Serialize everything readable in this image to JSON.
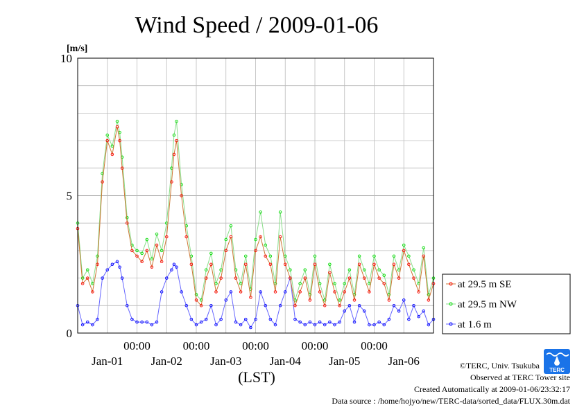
{
  "chart_data": {
    "type": "line",
    "title": "Wind Speed / 2009-01-06",
    "ylabel": "[m/s]",
    "xlabel": "(LST)",
    "ylim": [
      0,
      10
    ],
    "yticks": [
      "0",
      "5",
      "10"
    ],
    "x_range_hours": [
      0,
      144
    ],
    "time_ticks": [
      {
        "hour": 24,
        "label": "00:00"
      },
      {
        "hour": 48,
        "label": "00:00"
      },
      {
        "hour": 72,
        "label": "00:00"
      },
      {
        "hour": 96,
        "label": "00:00"
      },
      {
        "hour": 120,
        "label": "00:00"
      }
    ],
    "date_labels": [
      {
        "hour": 12,
        "label": "Jan-01"
      },
      {
        "hour": 36,
        "label": "Jan-02"
      },
      {
        "hour": 60,
        "label": "Jan-03"
      },
      {
        "hour": 84,
        "label": "Jan-04"
      },
      {
        "hour": 108,
        "label": "Jan-05"
      },
      {
        "hour": 132,
        "label": "Jan-06"
      }
    ],
    "grid": true,
    "legend_position": "right",
    "series": [
      {
        "name": "at 29.5 m SE",
        "color": "#ff0000",
        "line_color": "#cc7733",
        "x": [
          0,
          2,
          4,
          6,
          8,
          10,
          12,
          14,
          16,
          17,
          18,
          20,
          22,
          24,
          26,
          28,
          30,
          32,
          34,
          36,
          38,
          39,
          40,
          42,
          44,
          46,
          48,
          50,
          52,
          54,
          56,
          58,
          60,
          62,
          64,
          66,
          68,
          70,
          72,
          74,
          76,
          78,
          80,
          82,
          84,
          86,
          88,
          90,
          92,
          94,
          96,
          98,
          100,
          102,
          104,
          106,
          108,
          110,
          112,
          114,
          116,
          118,
          120,
          122,
          124,
          126,
          128,
          130,
          132,
          134,
          136,
          138,
          140,
          142,
          144
        ],
        "y": [
          3.8,
          1.8,
          2.0,
          1.5,
          2.5,
          5.5,
          7.0,
          6.5,
          7.5,
          7.0,
          6.0,
          4.0,
          3.0,
          2.8,
          2.6,
          3.0,
          2.4,
          3.2,
          2.6,
          3.5,
          5.5,
          6.5,
          7.0,
          5.0,
          3.5,
          2.5,
          1.2,
          1.0,
          2.0,
          2.5,
          1.5,
          2.0,
          3.0,
          3.5,
          2.0,
          1.5,
          2.5,
          1.3,
          3.0,
          3.5,
          2.8,
          2.5,
          1.5,
          3.5,
          2.5,
          2.0,
          1.0,
          1.5,
          2.0,
          1.2,
          2.5,
          1.5,
          1.0,
          2.2,
          1.5,
          1.0,
          1.5,
          2.0,
          1.2,
          2.5,
          2.0,
          1.5,
          2.5,
          2.0,
          1.8,
          1.2,
          2.5,
          2.0,
          3.0,
          2.5,
          2.0,
          1.5,
          2.8,
          1.2,
          1.8
        ]
      },
      {
        "name": "at 29.5 m NW",
        "color": "#00dd00",
        "line_color": "#88dd88",
        "x": [
          0,
          2,
          4,
          6,
          8,
          10,
          12,
          14,
          16,
          17,
          18,
          20,
          22,
          24,
          26,
          28,
          30,
          32,
          34,
          36,
          38,
          39,
          40,
          42,
          44,
          46,
          48,
          50,
          52,
          54,
          56,
          58,
          60,
          62,
          64,
          66,
          68,
          70,
          72,
          74,
          76,
          78,
          80,
          82,
          84,
          86,
          88,
          90,
          92,
          94,
          96,
          98,
          100,
          102,
          104,
          106,
          108,
          110,
          112,
          114,
          116,
          118,
          120,
          122,
          124,
          126,
          128,
          130,
          132,
          134,
          136,
          138,
          140,
          142,
          144
        ],
        "y": [
          4.0,
          2.0,
          2.3,
          1.8,
          2.8,
          5.8,
          7.2,
          6.8,
          7.7,
          7.3,
          6.4,
          4.2,
          3.2,
          3.0,
          2.9,
          3.4,
          2.7,
          3.6,
          3.0,
          4.0,
          6.0,
          7.2,
          7.7,
          5.4,
          3.9,
          2.8,
          1.4,
          1.2,
          2.3,
          2.9,
          1.8,
          2.3,
          3.4,
          3.9,
          2.3,
          1.8,
          2.8,
          1.6,
          3.4,
          4.4,
          3.2,
          2.8,
          1.8,
          4.4,
          2.8,
          2.3,
          1.2,
          1.8,
          2.3,
          1.4,
          2.8,
          1.8,
          1.2,
          2.5,
          1.8,
          1.2,
          1.8,
          2.3,
          1.4,
          2.8,
          2.3,
          1.8,
          2.8,
          2.3,
          2.1,
          1.4,
          2.8,
          2.3,
          3.2,
          2.8,
          2.3,
          1.8,
          3.1,
          1.4,
          2.0
        ]
      },
      {
        "name": "at 1.6 m",
        "color": "#0000ff",
        "line_color": "#6666ff",
        "x": [
          0,
          2,
          4,
          6,
          8,
          10,
          12,
          14,
          16,
          17,
          18,
          20,
          22,
          24,
          26,
          28,
          30,
          32,
          34,
          36,
          38,
          39,
          40,
          42,
          44,
          46,
          48,
          50,
          52,
          54,
          56,
          58,
          60,
          62,
          64,
          66,
          68,
          70,
          72,
          74,
          76,
          78,
          80,
          82,
          84,
          86,
          88,
          90,
          92,
          94,
          96,
          98,
          100,
          102,
          104,
          106,
          108,
          110,
          112,
          114,
          116,
          118,
          120,
          122,
          124,
          126,
          128,
          130,
          132,
          134,
          136,
          138,
          140,
          142,
          144
        ],
        "y": [
          1.0,
          0.3,
          0.4,
          0.3,
          0.5,
          2.0,
          2.3,
          2.5,
          2.6,
          2.4,
          2.0,
          1.0,
          0.5,
          0.4,
          0.4,
          0.4,
          0.3,
          0.4,
          1.5,
          2.0,
          2.3,
          2.5,
          2.4,
          1.5,
          1.0,
          0.5,
          0.3,
          0.4,
          0.5,
          1.0,
          0.3,
          0.5,
          1.2,
          1.5,
          0.4,
          0.3,
          0.5,
          0.2,
          0.5,
          1.5,
          1.0,
          0.5,
          0.3,
          1.0,
          1.5,
          2.0,
          0.5,
          0.4,
          0.3,
          0.4,
          0.3,
          0.4,
          0.3,
          0.4,
          0.3,
          0.4,
          0.8,
          1.0,
          0.4,
          1.0,
          0.8,
          0.3,
          0.3,
          0.4,
          0.3,
          0.5,
          1.0,
          0.8,
          1.2,
          0.5,
          1.0,
          0.6,
          0.8,
          0.3,
          0.5
        ]
      }
    ]
  },
  "credits": {
    "copyright": "©TERC, Univ. Tsukuba",
    "observed": "Observed at TERC Tower site",
    "created": "Created Automatically at 2009-01-06/23:32:17",
    "source": "Data source : /home/hojyo/new/TERC-data/sorted_data/FLUX.30m.dat"
  },
  "logo": {
    "text": "TERC",
    "color": "#1a73e8"
  }
}
